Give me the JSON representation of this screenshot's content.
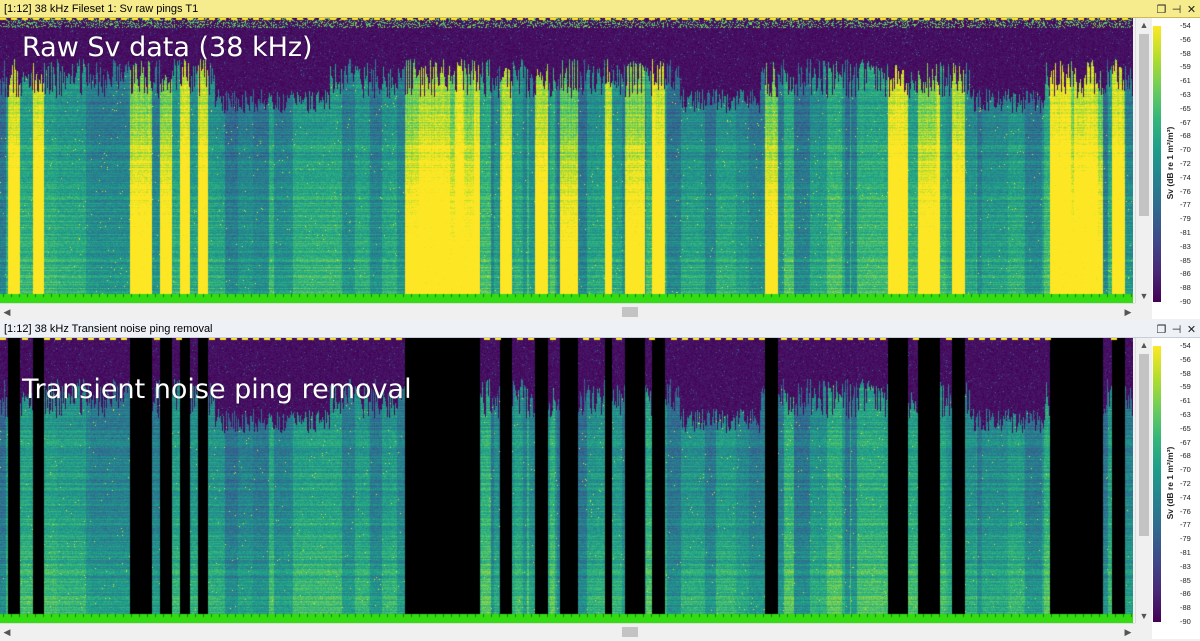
{
  "panels": [
    {
      "title": "[1:12] 38 kHz Fileset 1: Sv raw pings T1",
      "overlay": "Raw Sv data (38 kHz)",
      "mode": "raw",
      "titlebar_color": "#f6ec8e"
    },
    {
      "title": "[1:12] 38 kHz Transient noise ping removal",
      "overlay": "Transient noise ping removal",
      "mode": "filtered",
      "titlebar_color": "#eef1f6"
    }
  ],
  "window_buttons": {
    "restore": "❐",
    "pin": "⊣",
    "close": "✕"
  },
  "colorbar": {
    "title": "Sv (dB re 1 m²/m³)",
    "ticks": [
      "-54",
      "-56",
      "-58",
      "-59",
      "-61",
      "-63",
      "-65",
      "-67",
      "-68",
      "-70",
      "-72",
      "-74",
      "-76",
      "-77",
      "-79",
      "-81",
      "-83",
      "-85",
      "-86",
      "-88",
      "-90"
    ],
    "colors": [
      "#fde725",
      "#b5de2b",
      "#6ece58",
      "#35b779",
      "#1f9e89",
      "#26828e",
      "#31688e",
      "#3e4989",
      "#482878",
      "#440154"
    ]
  },
  "bottom_line_color": "#33dd11",
  "removed_color": "#000000"
}
